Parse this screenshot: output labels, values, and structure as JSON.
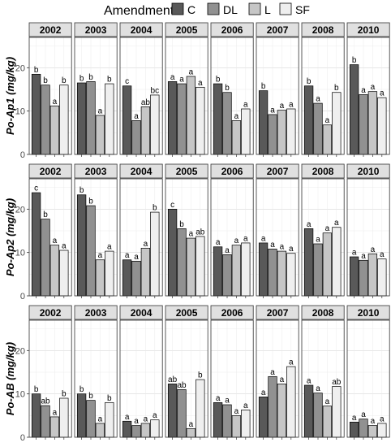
{
  "chart_data": {
    "type": "bar",
    "legend": {
      "title": "Amendment",
      "placement": "top",
      "entries": [
        "C",
        "DL",
        "L",
        "SF"
      ]
    },
    "colors": {
      "C": "#595959",
      "DL": "#919191",
      "L": "#c6c6c6",
      "SF": "#efefef"
    },
    "years": [
      "2002",
      "2003",
      "2004",
      "2005",
      "2006",
      "2007",
      "2008",
      "2010"
    ],
    "grid": true,
    "rows": [
      {
        "ylabel": "Po-Ap1 (mg/kg)",
        "ylim": [
          0,
          27
        ],
        "yticks": [
          0,
          10,
          20
        ],
        "panels": [
          {
            "year": "2002",
            "values": [
              18.5,
              16,
              11.2,
              16
            ],
            "labels": [
              "b",
              "b",
              "a",
              "b"
            ]
          },
          {
            "year": "2003",
            "values": [
              16.5,
              16.8,
              9,
              16.3
            ],
            "labels": [
              "b",
              "b",
              "a",
              "b"
            ]
          },
          {
            "year": "2004",
            "values": [
              15.8,
              7.8,
              11,
              13.7
            ],
            "labels": [
              "c",
              "a",
              "ab",
              "bc"
            ]
          },
          {
            "year": "2005",
            "values": [
              16.8,
              16.3,
              18,
              15.5
            ],
            "labels": [
              "a",
              "a",
              "a",
              "a"
            ]
          },
          {
            "year": "2006",
            "values": [
              16.3,
              14.3,
              7.8,
              10.5
            ],
            "labels": [
              "b",
              "b",
              "a",
              "a"
            ]
          },
          {
            "year": "2007",
            "values": [
              14.7,
              9.2,
              10.2,
              10.5
            ],
            "labels": [
              "b",
              "a",
              "a",
              "a"
            ]
          },
          {
            "year": "2008",
            "values": [
              15.8,
              11.8,
              6.8,
              14.3
            ],
            "labels": [
              "b",
              "a",
              "a",
              "b"
            ]
          },
          {
            "year": "2010",
            "values": [
              20.7,
              13.8,
              14.5,
              13.1
            ],
            "labels": [
              "b",
              "a",
              "a",
              "a"
            ]
          }
        ]
      },
      {
        "ylabel": "Po-Ap2 (mg/kg)",
        "ylim": [
          0,
          27
        ],
        "yticks": [
          0,
          10,
          20
        ],
        "panels": [
          {
            "year": "2002",
            "values": [
              23.8,
              17.7,
              11.7,
              10.5
            ],
            "labels": [
              "c",
              "b",
              "a",
              "a"
            ]
          },
          {
            "year": "2003",
            "values": [
              23.3,
              20.8,
              8.3,
              10.3
            ],
            "labels": [
              "b",
              "b",
              "a",
              "a"
            ]
          },
          {
            "year": "2004",
            "values": [
              8.3,
              8,
              11,
              19.3
            ],
            "labels": [
              "a",
              "a",
              "a",
              "b"
            ]
          },
          {
            "year": "2005",
            "values": [
              20,
              15.5,
              13.3,
              13.7
            ],
            "labels": [
              "c",
              "b",
              "a",
              "ab"
            ]
          },
          {
            "year": "2006",
            "values": [
              11.3,
              9.5,
              11.7,
              12.2
            ],
            "labels": [
              "a",
              "a",
              "a",
              "a"
            ]
          },
          {
            "year": "2007",
            "values": [
              12.2,
              10.8,
              10.3,
              9.8
            ],
            "labels": [
              "a",
              "a",
              "a",
              "a"
            ]
          },
          {
            "year": "2008",
            "values": [
              15.5,
              12,
              14.5,
              15.8
            ],
            "labels": [
              "a",
              "a",
              "a",
              "a"
            ]
          },
          {
            "year": "2010",
            "values": [
              9,
              8.2,
              9.7,
              8.5
            ],
            "labels": [
              "a",
              "a",
              "a",
              "a"
            ]
          }
        ]
      },
      {
        "ylabel": "Po-AB (mg/kg)",
        "ylim": [
          0,
          27
        ],
        "yticks": [
          0,
          10,
          20
        ],
        "panels": [
          {
            "year": "2002",
            "values": [
              10,
              7.3,
              4.7,
              9
            ],
            "labels": [
              "b",
              "ab",
              "a",
              "b"
            ]
          },
          {
            "year": "2003",
            "values": [
              10,
              8.5,
              3.2,
              8
            ],
            "labels": [
              "b",
              "b",
              "a",
              "b"
            ]
          },
          {
            "year": "2004",
            "values": [
              3.7,
              2.7,
              3.2,
              4
            ],
            "labels": [
              "a",
              "a",
              "a",
              "a"
            ]
          },
          {
            "year": "2005",
            "values": [
              12.3,
              11,
              2,
              13.3
            ],
            "labels": [
              "ab",
              "ab",
              "a",
              "b"
            ]
          },
          {
            "year": "2006",
            "values": [
              8,
              7.5,
              5,
              6.3
            ],
            "labels": [
              "a",
              "a",
              "a",
              "a"
            ]
          },
          {
            "year": "2007",
            "values": [
              9.3,
              14,
              12.3,
              16.3
            ],
            "labels": [
              "a",
              "a",
              "a",
              "a"
            ]
          },
          {
            "year": "2008",
            "values": [
              12,
              10.2,
              7.2,
              11.7
            ],
            "labels": [
              "a",
              "a",
              "a",
              "ab"
            ]
          },
          {
            "year": "2010",
            "values": [
              3.5,
              4.2,
              2.7,
              3.2
            ],
            "labels": [
              "a",
              "a",
              "a",
              "a"
            ]
          }
        ]
      }
    ]
  }
}
